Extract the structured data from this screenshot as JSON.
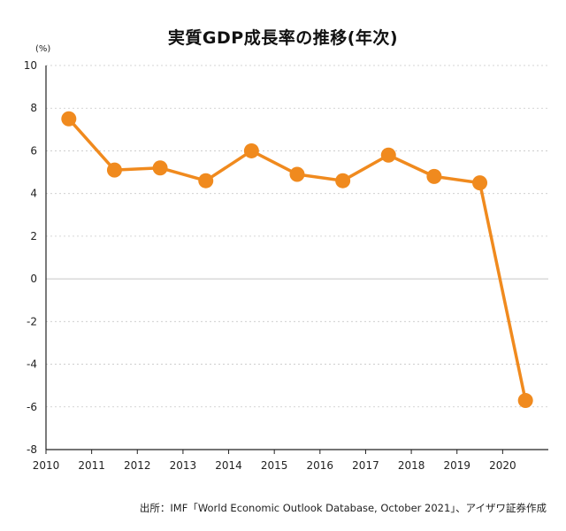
{
  "title": "実質GDP成長率の推移(年次)",
  "source": "出所：IMF「World Economic Outlook Database, October 2021」、アイザワ証券作成",
  "colors": {
    "line": "#f08a1e",
    "grid": "#c8c8c8",
    "axis": "#222222"
  },
  "chart_data": {
    "type": "line",
    "title": "実質GDP成長率の推移(年次)",
    "ylabel": "(%)",
    "xlabel": "",
    "x_ticks": [
      "2010",
      "2011",
      "2012",
      "2013",
      "2014",
      "2015",
      "2016",
      "2017",
      "2018",
      "2019",
      "2020"
    ],
    "y_ticks": [
      "10",
      "8",
      "6",
      "4",
      "2",
      "0",
      "-2",
      "-4",
      "-6",
      "-8"
    ],
    "xlim": [
      2010,
      2021
    ],
    "ylim": [
      -8,
      10
    ],
    "grid": true,
    "series": [
      {
        "x": [
          2010.5,
          2011.5,
          2012.5,
          2013.5,
          2014.5,
          2015.5,
          2016.5,
          2017.5,
          2018.5,
          2019.5,
          2020.5
        ],
        "values": [
          7.5,
          5.1,
          5.2,
          4.6,
          6.0,
          4.9,
          4.6,
          5.8,
          4.8,
          4.5,
          -5.7
        ]
      }
    ]
  }
}
